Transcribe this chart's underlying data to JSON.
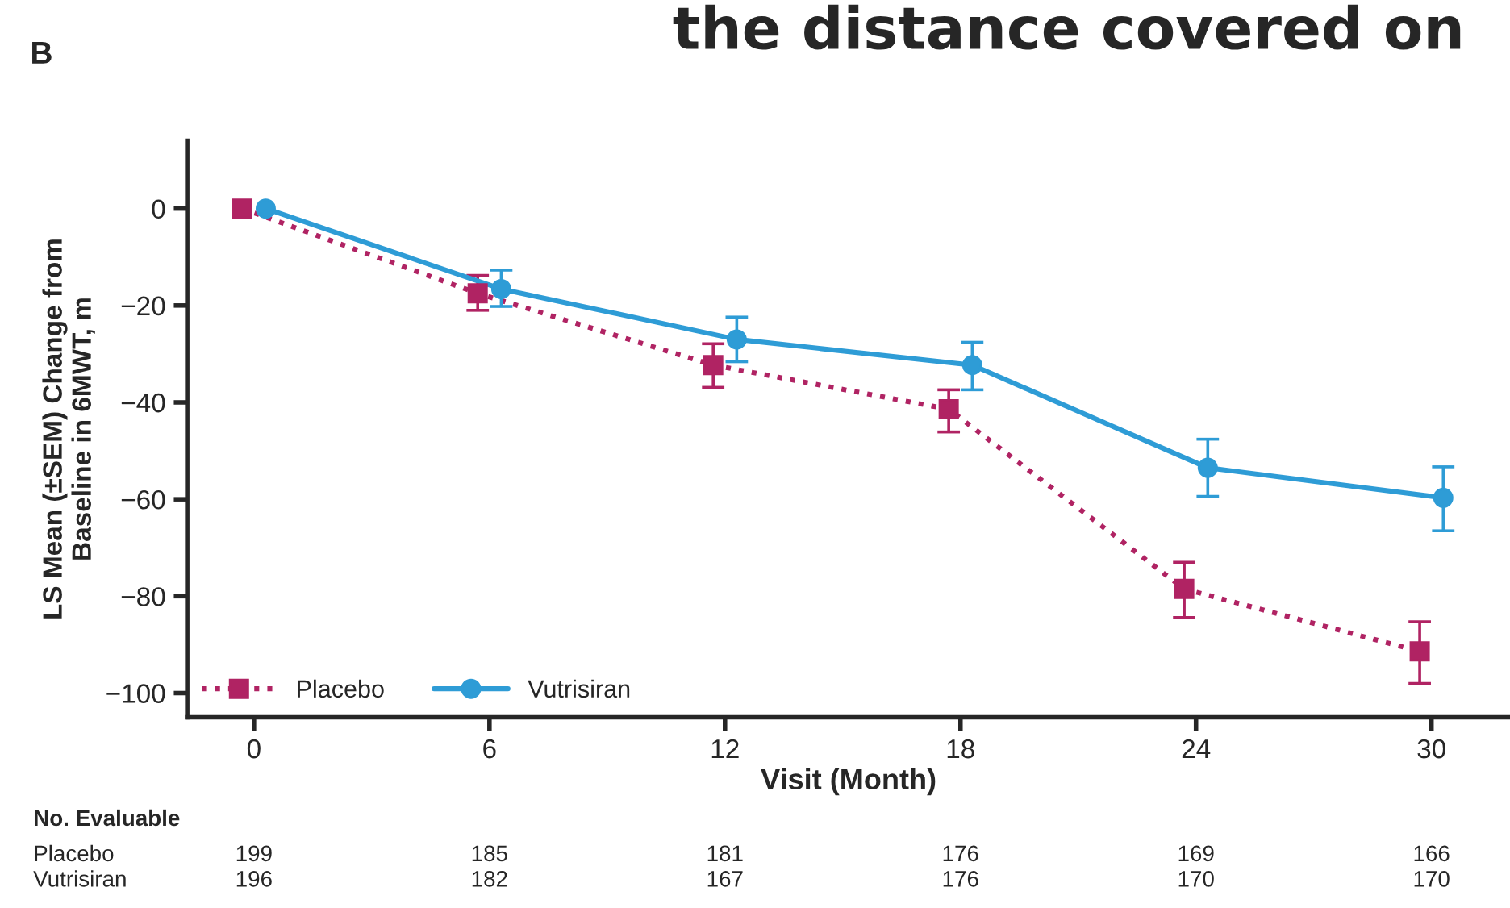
{
  "chart_data": {
    "type": "line",
    "title": "the distance covered on",
    "xlabel": "Visit (Month)",
    "ylabel": "LS Mean (±SEM) Change from\nBaseline in 6MWT, m",
    "xlim": [
      -1.7,
      32
    ],
    "xticks": [
      0,
      6,
      12,
      18,
      24,
      30
    ],
    "ylim": [
      -105,
      14
    ],
    "yticks": [
      0,
      {
        "value": -20,
        "label": "−20"
      },
      {
        "value": -40,
        "label": "−40"
      },
      {
        "value": -60,
        "label": "−60"
      },
      {
        "value": -80,
        "label": "−80"
      },
      {
        "value": -100,
        "label": "−100"
      }
    ],
    "grid": false,
    "legend": "bottom left",
    "series": [
      {
        "name": "Placebo",
        "color": "#b02363",
        "marker": "square",
        "line_style": "dotted",
        "x": [
          -0.3,
          5.7,
          11.7,
          17.7,
          23.7,
          29.7
        ],
        "values": [
          0,
          -17.5,
          -32.3,
          -41.4,
          -78.5,
          -91.4
        ],
        "errors": [
          null,
          [
            -21,
            -13.8
          ],
          [
            -36.9,
            -27.9
          ],
          [
            -46.1,
            -37.4
          ],
          [
            -84.4,
            -73
          ],
          [
            -98,
            -85.3
          ]
        ]
      },
      {
        "name": "Vutrisiran",
        "color": "#2e9cd6",
        "marker": "circle",
        "line_style": "solid",
        "x": [
          0.3,
          6.3,
          12.3,
          18.3,
          24.3,
          30.3
        ],
        "values": [
          0,
          -16.6,
          -27,
          -32.3,
          -53.5,
          -59.7
        ],
        "errors": [
          null,
          [
            -20.2,
            -12.7
          ],
          [
            -31.6,
            -22.4
          ],
          [
            -37.4,
            -27.6
          ],
          [
            -59.4,
            -47.6
          ],
          [
            -66.5,
            -53.3
          ]
        ]
      }
    ],
    "annotations": [
      "B",
      "No. Evaluable",
      "Placebo",
      "Vutrisiran",
      "199",
      "185",
      "181",
      "176",
      "169",
      "166",
      "196",
      "182",
      "167",
      "176",
      "170",
      "170"
    ]
  }
}
